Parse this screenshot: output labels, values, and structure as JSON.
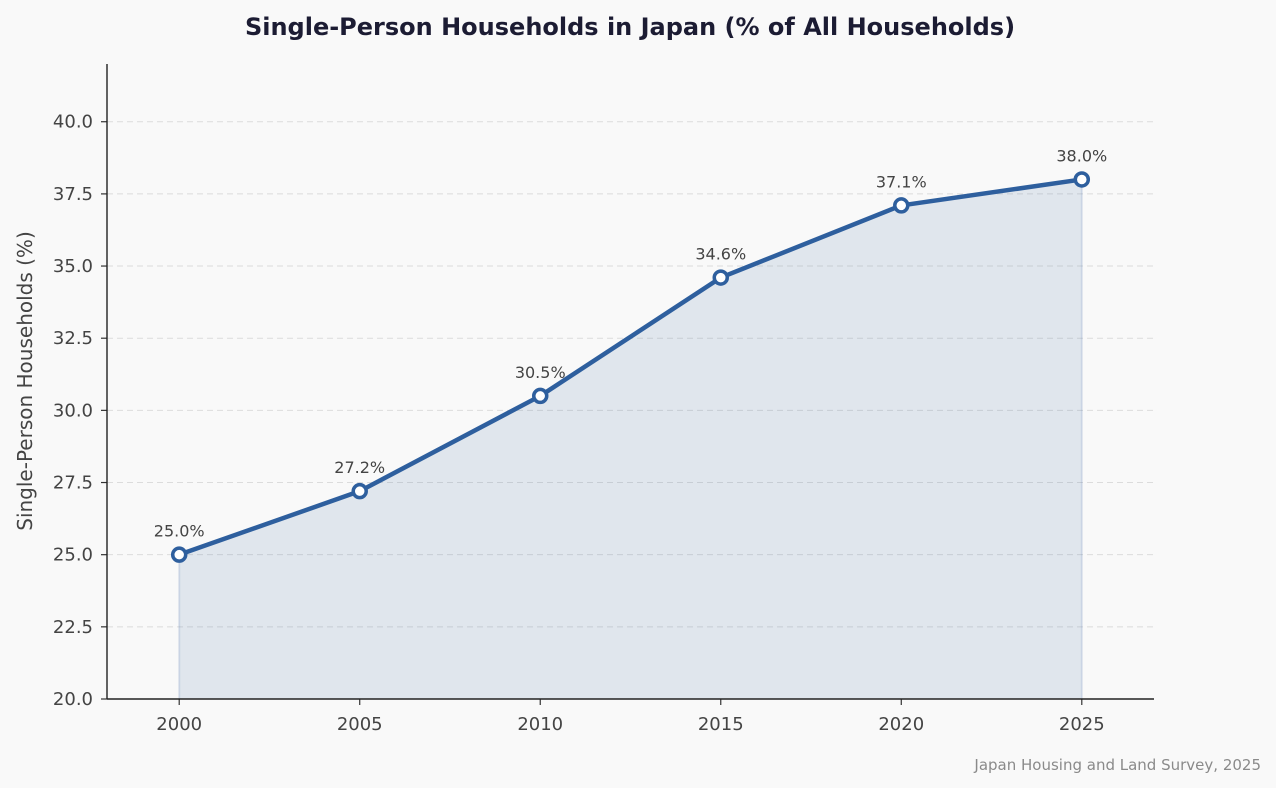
{
  "chart_data": {
    "type": "line",
    "title": "Single-Person Households in Japan (% of All Households)",
    "xlabel": "",
    "ylabel": "Single-Person Households (%)",
    "x": [
      2000,
      2005,
      2010,
      2015,
      2020,
      2025
    ],
    "series": [
      {
        "values": [
          25.0,
          27.2,
          30.5,
          34.6,
          37.1,
          38.0
        ],
        "labels": [
          "25.0%",
          "27.2%",
          "30.5%",
          "34.6%",
          "37.1%",
          "38.0%"
        ],
        "color": "#2e5f9e",
        "fill": true
      }
    ],
    "xticks": [
      "2000",
      "2005",
      "2010",
      "2015",
      "2020",
      "2025"
    ],
    "yticks": [
      "20.0",
      "22.5",
      "25.0",
      "27.5",
      "30.0",
      "32.5",
      "35.0",
      "37.5",
      "40.0"
    ],
    "xlim": [
      1998,
      2027
    ],
    "ylim": [
      20,
      42
    ],
    "grid": "horizontal dashed",
    "legend": "none",
    "source": "Japan Housing and Land Survey, 2025"
  }
}
